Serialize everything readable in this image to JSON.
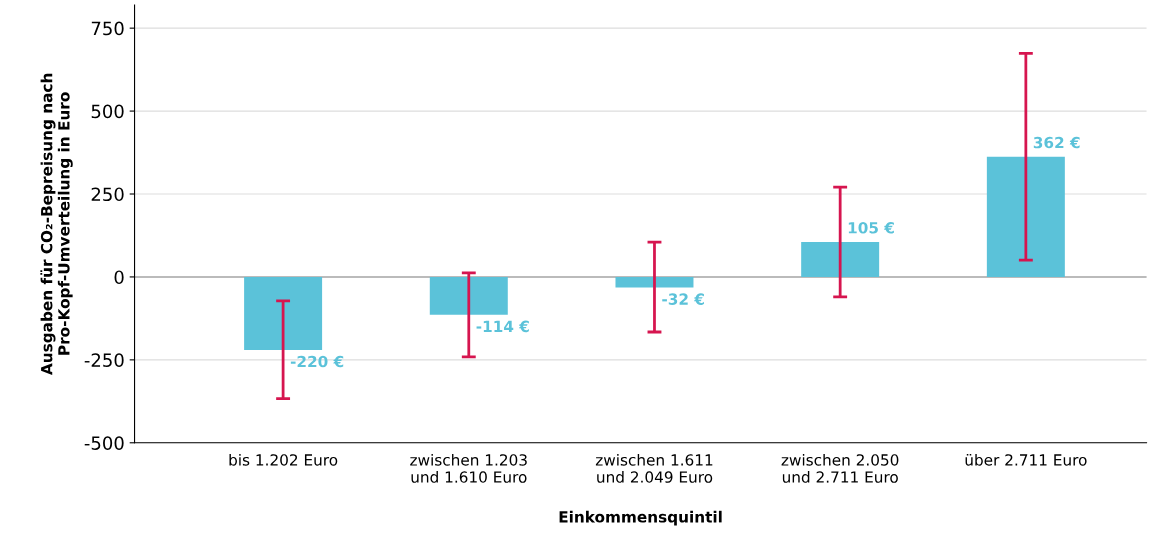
{
  "chart_data": {
    "type": "bar",
    "xlabel": "Einkommensquintil",
    "ylabel": "Ausgaben für CO₂-Bepreisung nach\nPro-Kopf-Umverteilung in Euro",
    "categories": [
      "bis 1.202 Euro",
      "zwischen 1.203\nund 1.610 Euro",
      "zwischen 1.611\nund 2.049 Euro",
      "zwischen 2.050\nund 2.711 Euro",
      "über 2.711 Euro"
    ],
    "values": [
      -220,
      -114,
      -32,
      105,
      362
    ],
    "errors": [
      [
        -367,
        -72
      ],
      [
        -241,
        12
      ],
      [
        -166,
        105
      ],
      [
        -60,
        271
      ],
      [
        51,
        674
      ]
    ],
    "value_labels": [
      "-220 €",
      "-114 €",
      "-32 €",
      "105 €",
      "362 €"
    ],
    "color": "#5bc2d9",
    "ylim": [
      -500,
      820
    ],
    "yticks": [
      -500,
      -250,
      0,
      250,
      500,
      750
    ],
    "grid": "y"
  }
}
